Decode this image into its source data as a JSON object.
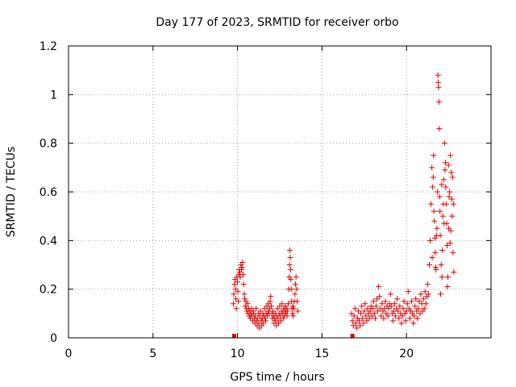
{
  "chart_data": {
    "type": "scatter",
    "title": "Day 177 of 2023, SRMTID for receiver orbo",
    "xlabel": "GPS time / hours",
    "ylabel": "SRMTID / TECUs",
    "xlim": [
      0,
      25
    ],
    "ylim": [
      0,
      1.2
    ],
    "xticks": [
      0,
      5,
      10,
      15,
      20
    ],
    "yticks": [
      0,
      0.2,
      0.4,
      0.6,
      0.8,
      1,
      1.2
    ],
    "xtick_labels": [
      "0",
      "5",
      "10",
      "15",
      "20"
    ],
    "ytick_labels": [
      "0",
      "0.2",
      "0.4",
      "0.6",
      "0.8",
      "1",
      "1.2"
    ],
    "grid": true,
    "marker": "+",
    "color": "#e00000",
    "series": [
      {
        "name": "SRMTID",
        "points": [
          [
            9.8,
            0.0
          ],
          [
            16.8,
            0.0
          ],
          [
            9.75,
            0.14
          ],
          [
            9.78,
            0.18
          ],
          [
            9.82,
            0.22
          ],
          [
            9.85,
            0.24
          ],
          [
            9.88,
            0.2
          ],
          [
            9.9,
            0.16
          ],
          [
            9.93,
            0.12
          ],
          [
            9.96,
            0.25
          ],
          [
            10.0,
            0.23
          ],
          [
            10.02,
            0.19
          ],
          [
            10.05,
            0.15
          ],
          [
            10.08,
            0.26
          ],
          [
            10.1,
            0.28
          ],
          [
            10.13,
            0.27
          ],
          [
            10.16,
            0.25
          ],
          [
            10.2,
            0.3
          ],
          [
            10.23,
            0.28
          ],
          [
            10.26,
            0.29
          ],
          [
            10.3,
            0.31
          ],
          [
            10.33,
            0.26
          ],
          [
            10.36,
            0.22
          ],
          [
            10.4,
            0.18
          ],
          [
            10.43,
            0.16
          ],
          [
            10.46,
            0.13
          ],
          [
            10.5,
            0.15
          ],
          [
            10.53,
            0.12
          ],
          [
            10.56,
            0.11
          ],
          [
            10.6,
            0.14
          ],
          [
            10.63,
            0.1
          ],
          [
            10.66,
            0.12
          ],
          [
            10.7,
            0.09
          ],
          [
            10.73,
            0.11
          ],
          [
            10.76,
            0.08
          ],
          [
            10.8,
            0.1
          ],
          [
            10.83,
            0.12
          ],
          [
            10.86,
            0.09
          ],
          [
            10.9,
            0.07
          ],
          [
            10.93,
            0.11
          ],
          [
            10.96,
            0.1
          ],
          [
            11.0,
            0.08
          ],
          [
            11.03,
            0.06
          ],
          [
            11.06,
            0.09
          ],
          [
            11.1,
            0.12
          ],
          [
            11.13,
            0.07
          ],
          [
            11.16,
            0.05
          ],
          [
            11.2,
            0.08
          ],
          [
            11.23,
            0.1
          ],
          [
            11.26,
            0.06
          ],
          [
            11.3,
            0.04
          ],
          [
            11.33,
            0.09
          ],
          [
            11.36,
            0.11
          ],
          [
            11.4,
            0.07
          ],
          [
            11.43,
            0.05
          ],
          [
            11.46,
            0.08
          ],
          [
            11.5,
            0.1
          ],
          [
            11.53,
            0.06
          ],
          [
            11.56,
            0.09
          ],
          [
            11.6,
            0.12
          ],
          [
            11.63,
            0.08
          ],
          [
            11.66,
            0.07
          ],
          [
            11.7,
            0.1
          ],
          [
            11.73,
            0.13
          ],
          [
            11.76,
            0.09
          ],
          [
            11.8,
            0.11
          ],
          [
            11.83,
            0.14
          ],
          [
            11.86,
            0.1
          ],
          [
            11.9,
            0.12
          ],
          [
            11.93,
            0.15
          ],
          [
            11.96,
            0.17
          ],
          [
            12.0,
            0.13
          ],
          [
            12.03,
            0.1
          ],
          [
            12.06,
            0.08
          ],
          [
            12.1,
            0.11
          ],
          [
            12.13,
            0.09
          ],
          [
            12.16,
            0.06
          ],
          [
            12.2,
            0.08
          ],
          [
            12.23,
            0.1
          ],
          [
            12.26,
            0.07
          ],
          [
            12.3,
            0.05
          ],
          [
            12.33,
            0.09
          ],
          [
            12.36,
            0.12
          ],
          [
            12.4,
            0.08
          ],
          [
            12.43,
            0.06
          ],
          [
            12.46,
            0.1
          ],
          [
            12.5,
            0.13
          ],
          [
            12.53,
            0.09
          ],
          [
            12.56,
            0.07
          ],
          [
            12.6,
            0.11
          ],
          [
            12.63,
            0.14
          ],
          [
            12.66,
            0.1
          ],
          [
            12.7,
            0.08
          ],
          [
            12.73,
            0.12
          ],
          [
            12.76,
            0.09
          ],
          [
            12.8,
            0.11
          ],
          [
            12.83,
            0.13
          ],
          [
            12.86,
            0.1
          ],
          [
            12.9,
            0.12
          ],
          [
            12.93,
            0.09
          ],
          [
            12.96,
            0.11
          ],
          [
            13.0,
            0.14
          ],
          [
            13.03,
            0.2
          ],
          [
            13.06,
            0.25
          ],
          [
            13.08,
            0.3
          ],
          [
            13.1,
            0.36
          ],
          [
            13.12,
            0.33
          ],
          [
            13.14,
            0.28
          ],
          [
            13.16,
            0.24
          ],
          [
            13.18,
            0.2
          ],
          [
            13.2,
            0.15
          ],
          [
            13.22,
            0.12
          ],
          [
            13.25,
            0.1
          ],
          [
            13.28,
            0.13
          ],
          [
            13.3,
            0.09
          ],
          [
            13.33,
            0.12
          ],
          [
            13.36,
            0.15
          ],
          [
            13.4,
            0.18
          ],
          [
            13.43,
            0.22
          ],
          [
            13.46,
            0.25
          ],
          [
            13.5,
            0.2
          ],
          [
            13.53,
            0.15
          ],
          [
            13.56,
            0.11
          ],
          [
            16.75,
            0.1
          ],
          [
            16.8,
            0.07
          ],
          [
            16.85,
            0.05
          ],
          [
            16.9,
            0.09
          ],
          [
            16.95,
            0.12
          ],
          [
            17.0,
            0.06
          ],
          [
            17.05,
            0.04
          ],
          [
            17.1,
            0.08
          ],
          [
            17.15,
            0.11
          ],
          [
            17.2,
            0.07
          ],
          [
            17.25,
            0.05
          ],
          [
            17.3,
            0.1
          ],
          [
            17.35,
            0.13
          ],
          [
            17.4,
            0.08
          ],
          [
            17.45,
            0.06
          ],
          [
            17.5,
            0.11
          ],
          [
            17.55,
            0.14
          ],
          [
            17.6,
            0.09
          ],
          [
            17.65,
            0.07
          ],
          [
            17.7,
            0.12
          ],
          [
            17.75,
            0.1
          ],
          [
            17.8,
            0.08
          ],
          [
            17.85,
            0.11
          ],
          [
            17.9,
            0.13
          ],
          [
            17.95,
            0.09
          ],
          [
            18.0,
            0.12
          ],
          [
            18.05,
            0.15
          ],
          [
            18.1,
            0.1
          ],
          [
            18.15,
            0.08
          ],
          [
            18.2,
            0.13
          ],
          [
            18.25,
            0.16
          ],
          [
            18.3,
            0.11
          ],
          [
            18.35,
            0.21
          ],
          [
            18.4,
            0.17
          ],
          [
            18.45,
            0.12
          ],
          [
            18.5,
            0.09
          ],
          [
            18.55,
            0.14
          ],
          [
            18.6,
            0.11
          ],
          [
            18.65,
            0.08
          ],
          [
            18.7,
            0.12
          ],
          [
            18.75,
            0.15
          ],
          [
            18.8,
            0.1
          ],
          [
            18.85,
            0.13
          ],
          [
            18.9,
            0.09
          ],
          [
            18.95,
            0.12
          ],
          [
            19.0,
            0.14
          ],
          [
            19.05,
            0.18
          ],
          [
            19.1,
            0.13
          ],
          [
            19.15,
            0.1
          ],
          [
            19.2,
            0.07
          ],
          [
            19.25,
            0.11
          ],
          [
            19.3,
            0.14
          ],
          [
            19.35,
            0.09
          ],
          [
            19.4,
            0.12
          ],
          [
            19.45,
            0.16
          ],
          [
            19.5,
            0.11
          ],
          [
            19.55,
            0.08
          ],
          [
            19.6,
            0.13
          ],
          [
            19.65,
            0.1
          ],
          [
            19.7,
            0.06
          ],
          [
            19.75,
            0.09
          ],
          [
            19.8,
            0.12
          ],
          [
            19.85,
            0.15
          ],
          [
            19.9,
            0.1
          ],
          [
            19.95,
            0.07
          ],
          [
            20.0,
            0.11
          ],
          [
            20.05,
            0.14
          ],
          [
            20.1,
            0.19
          ],
          [
            20.15,
            0.12
          ],
          [
            20.2,
            0.08
          ],
          [
            20.25,
            0.11
          ],
          [
            20.3,
            0.15
          ],
          [
            20.35,
            0.1
          ],
          [
            20.4,
            0.06
          ],
          [
            20.45,
            0.09
          ],
          [
            20.5,
            0.13
          ],
          [
            20.55,
            0.16
          ],
          [
            20.6,
            0.11
          ],
          [
            20.65,
            0.08
          ],
          [
            20.7,
            0.12
          ],
          [
            20.75,
            0.15
          ],
          [
            20.8,
            0.1
          ],
          [
            20.85,
            0.18
          ],
          [
            20.9,
            0.14
          ],
          [
            20.95,
            0.11
          ],
          [
            21.0,
            0.16
          ],
          [
            21.05,
            0.12
          ],
          [
            21.1,
            0.19
          ],
          [
            21.15,
            0.14
          ],
          [
            21.2,
            0.17
          ],
          [
            21.25,
            0.22
          ],
          [
            21.3,
            0.18
          ],
          [
            21.35,
            0.3
          ],
          [
            21.4,
            0.4
          ],
          [
            21.45,
            0.55
          ],
          [
            21.5,
            0.7
          ],
          [
            21.55,
            0.62
          ],
          [
            21.6,
            0.75
          ],
          [
            21.65,
            0.48
          ],
          [
            21.7,
            0.35
          ],
          [
            21.75,
            0.28
          ],
          [
            21.8,
            0.45
          ],
          [
            21.83,
            0.6
          ],
          [
            21.86,
            1.08
          ],
          [
            21.88,
            1.05
          ],
          [
            21.9,
            1.03
          ],
          [
            21.92,
            0.97
          ],
          [
            21.94,
            0.86
          ],
          [
            21.96,
            0.58
          ],
          [
            22.0,
            0.42
          ],
          [
            22.05,
            0.3
          ],
          [
            22.1,
            0.25
          ],
          [
            22.15,
            0.5
          ],
          [
            22.2,
            0.65
          ],
          [
            22.25,
            0.8
          ],
          [
            22.3,
            0.72
          ],
          [
            22.35,
            0.55
          ],
          [
            22.4,
            0.38
          ],
          [
            22.45,
            0.25
          ],
          [
            22.5,
            0.45
          ],
          [
            22.55,
            0.6
          ],
          [
            22.6,
            0.75
          ],
          [
            22.65,
            0.68
          ],
          [
            22.7,
            0.5
          ],
          [
            22.75,
            0.35
          ],
          [
            22.8,
            0.27
          ],
          [
            21.52,
            0.33
          ],
          [
            21.62,
            0.52
          ],
          [
            21.72,
            0.29
          ],
          [
            21.78,
            0.42
          ],
          [
            22.02,
            0.18
          ],
          [
            22.12,
            0.36
          ],
          [
            22.22,
            0.47
          ],
          [
            22.32,
            0.62
          ],
          [
            22.42,
            0.21
          ],
          [
            22.52,
            0.58
          ],
          [
            22.62,
            0.44
          ],
          [
            22.72,
            0.66
          ],
          [
            22.78,
            0.55
          ],
          [
            21.58,
            0.66
          ],
          [
            21.68,
            0.41
          ],
          [
            21.98,
            0.52
          ],
          [
            22.08,
            0.63
          ],
          [
            22.18,
            0.55
          ],
          [
            22.28,
            0.69
          ],
          [
            22.38,
            0.47
          ],
          [
            22.48,
            0.71
          ],
          [
            22.58,
            0.39
          ],
          [
            22.68,
            0.57
          ]
        ]
      }
    ]
  }
}
